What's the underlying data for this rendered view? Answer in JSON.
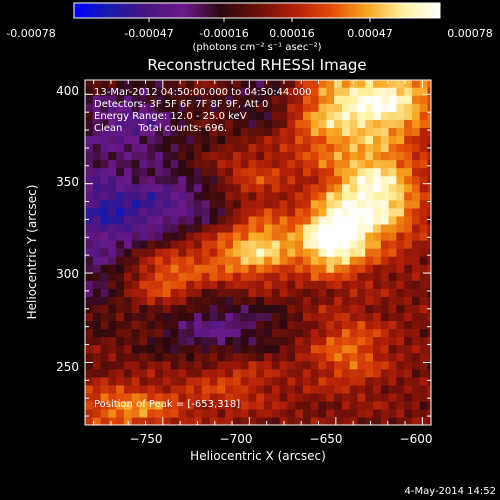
{
  "colorbar": {
    "ticks": [
      "-0.00078",
      "-0.00047",
      "-0.00016",
      "0.00016",
      "0.00047",
      "0.00078"
    ],
    "unit_label": "(photons cm⁻² s⁻¹ asec⁻²)"
  },
  "chart_data": {
    "type": "heatmap",
    "title": "Reconstructed RHESSI Image",
    "xlabel": "Heliocentric X (arcsec)",
    "ylabel": "Heliocentric Y (arcsec)",
    "xlim": [
      -795,
      -595
    ],
    "ylim": [
      215,
      408
    ],
    "xticks": [
      -750,
      -700,
      -650,
      -600
    ],
    "yticks": [
      250,
      300,
      350,
      400
    ],
    "xtick_labels": [
      "−750",
      "−700",
      "−650",
      "−600"
    ],
    "ytick_labels": [
      "250",
      "300",
      "350",
      "400"
    ],
    "value_range": [
      -0.00078,
      0.00078
    ],
    "colormap": [
      "#0000ff",
      "#1a1aa8",
      "#4a1680",
      "#6a1a8a",
      "#2a0810",
      "#6a1008",
      "#b01e08",
      "#e24a06",
      "#f7a41e",
      "#fff2a0",
      "#ffffff"
    ],
    "peak": {
      "x": -653,
      "y": 318
    },
    "annotations": [
      "13-Mar-2012 04:50:00.000 to 04:50:44.000",
      "Detectors: 3F 5F 6F 7F 8F 9F, Att 0",
      "Energy Range: 12.0 - 25.0 keV",
      "Clean     Total counts: 696.",
      "Position of Peak = [-653,318]"
    ],
    "features": [
      {
        "x": -652,
        "y": 320,
        "amp": 1.25,
        "sx": 13,
        "sy": 13
      },
      {
        "x": -627,
        "y": 344,
        "amp": 1.05,
        "sx": 18,
        "sy": 20
      },
      {
        "x": -622,
        "y": 397,
        "amp": 1.0,
        "sx": 22,
        "sy": 14
      },
      {
        "x": -660,
        "y": 386,
        "amp": 0.55,
        "sx": 18,
        "sy": 18
      },
      {
        "x": -712,
        "y": 313,
        "amp": 0.6,
        "sx": 20,
        "sy": 14
      },
      {
        "x": -748,
        "y": 297,
        "amp": 0.5,
        "sx": 14,
        "sy": 13
      },
      {
        "x": -690,
        "y": 318,
        "amp": 0.6,
        "sx": 14,
        "sy": 13
      },
      {
        "x": -700,
        "y": 352,
        "amp": 0.45,
        "sx": 16,
        "sy": 12
      },
      {
        "x": -770,
        "y": 225,
        "amp": 0.6,
        "sx": 22,
        "sy": 9
      },
      {
        "x": -643,
        "y": 257,
        "amp": 0.5,
        "sx": 16,
        "sy": 14
      },
      {
        "x": -710,
        "y": 240,
        "amp": 0.35,
        "sx": 20,
        "sy": 12
      },
      {
        "x": -770,
        "y": 355,
        "amp": 0.25,
        "sx": 10,
        "sy": 10
      },
      {
        "x": -730,
        "y": 335,
        "amp": -0.55,
        "sx": 32,
        "sy": 16
      },
      {
        "x": -780,
        "y": 340,
        "amp": -0.75,
        "sx": 22,
        "sy": 18
      },
      {
        "x": -770,
        "y": 385,
        "amp": -0.6,
        "sx": 24,
        "sy": 16
      },
      {
        "x": -720,
        "y": 270,
        "amp": -0.55,
        "sx": 28,
        "sy": 14
      },
      {
        "x": -690,
        "y": 395,
        "amp": -0.4,
        "sx": 18,
        "sy": 14
      },
      {
        "x": -790,
        "y": 300,
        "amp": -0.35,
        "sx": 12,
        "sy": 20
      }
    ]
  },
  "footer": {
    "date": "4-May-2014 14:52"
  }
}
